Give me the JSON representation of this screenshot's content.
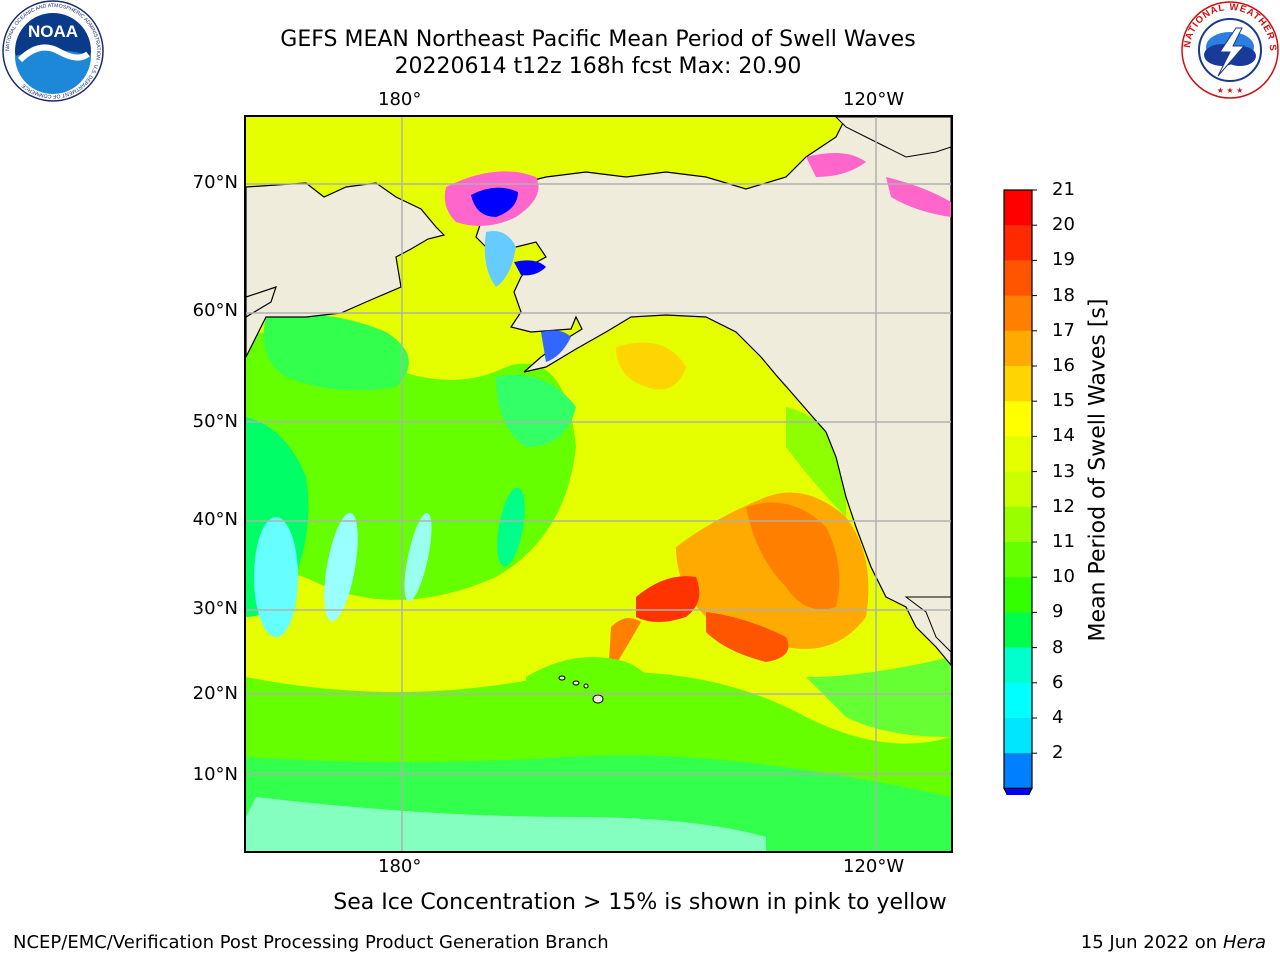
{
  "title": {
    "line1": "GEFS MEAN Northeast Pacific Mean Period of Swell Waves",
    "line2": "20220614 t12z 168h fcst   Max: 20.90"
  },
  "map": {
    "lon_labels_top": [
      "180°",
      "120°W"
    ],
    "lon_labels_bottom": [
      "180°",
      "120°W"
    ],
    "lat_labels": [
      "70°N",
      "60°N",
      "50°N",
      "40°N",
      "30°N",
      "20°N",
      "10°N"
    ],
    "land_color": "#efecdc",
    "gridline_color": "#b0b0b0"
  },
  "colorbar": {
    "label": "Mean Period of Swell Waves [s]",
    "ticks": [
      "21",
      "20",
      "19",
      "18",
      "17",
      "16",
      "15",
      "14",
      "13",
      "12",
      "11",
      "10",
      "9",
      "8",
      "6",
      "4",
      "2"
    ],
    "colors": [
      "#ff0000",
      "#ff2a00",
      "#ff5500",
      "#ff8000",
      "#ffaa00",
      "#ffd500",
      "#ffff00",
      "#e6ff00",
      "#ccff00",
      "#99ff00",
      "#66ff00",
      "#33ff00",
      "#00ff4d",
      "#00ffcc",
      "#00ffff",
      "#00e6ff",
      "#0080ff"
    ],
    "under_color": "#0000ff"
  },
  "footnote": "Sea Ice Concentration > 15% is shown in pink to yellow",
  "credits": {
    "left": "NCEP/EMC/Verification Post Processing Product Generation Branch",
    "right_date": "15 Jun 2022 on",
    "right_host": "Hera"
  },
  "logos": {
    "noaa_text": "NOAA",
    "noaa_ring": "NATIONAL OCEANIC AND ATMOSPHERIC ADMINISTRATION · U.S. DEPARTMENT OF COMMERCE",
    "nws_ring": "NATIONAL WEATHER SERVICE"
  }
}
